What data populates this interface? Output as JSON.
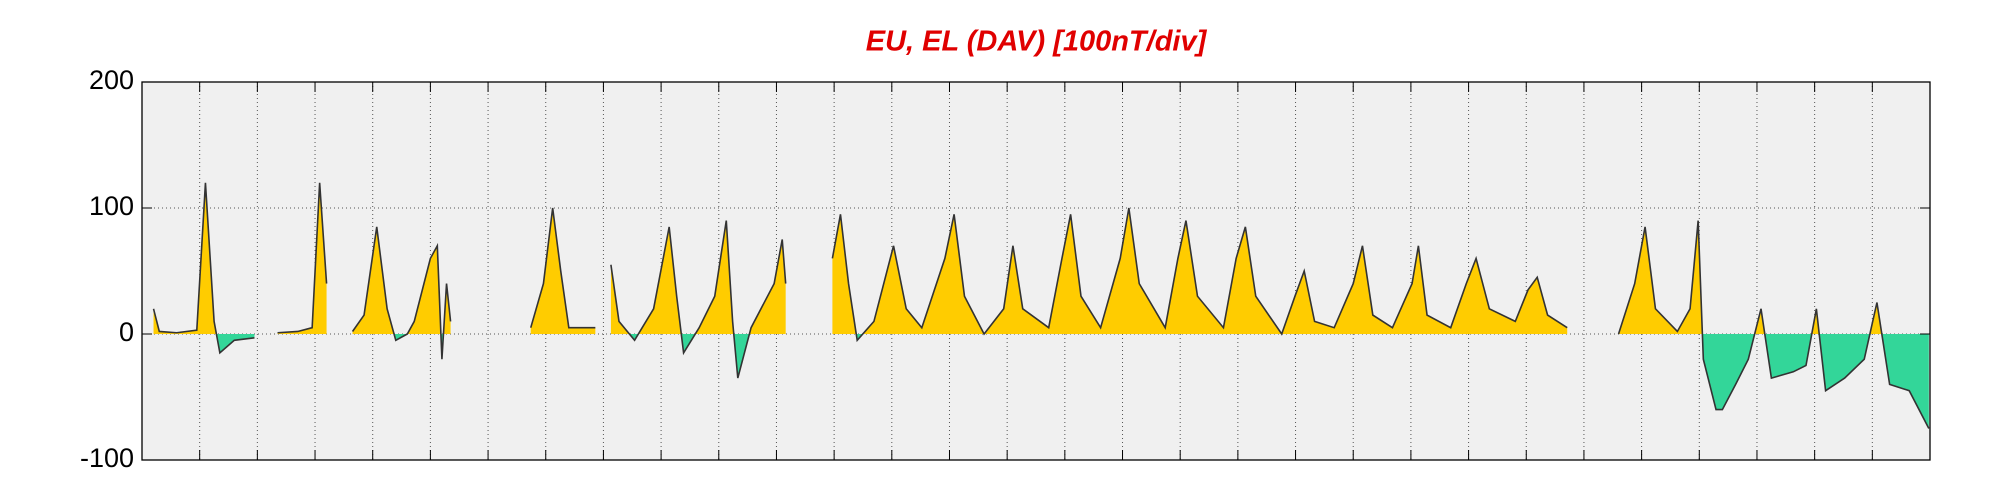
{
  "chart_data": {
    "type": "area",
    "title": "EU, EL (DAV)  [100nT/div]",
    "title_color": "#e00000",
    "pos_color": "#ffcc00",
    "neg_color": "#33d699",
    "line_color": "#333333",
    "background": "#f0f0f0",
    "grid": true,
    "xlim": [
      0,
      31
    ],
    "xticks": [
      1,
      2,
      3,
      4,
      5,
      6,
      7,
      8,
      9,
      10,
      11,
      12,
      13,
      14,
      15,
      16,
      17,
      18,
      19,
      20,
      21,
      22,
      23,
      24,
      25,
      26,
      27,
      28,
      29,
      30
    ],
    "ylim": [
      -100,
      200
    ],
    "yticks": [
      -100,
      0,
      100,
      200
    ],
    "x": [
      0.2,
      0.3,
      0.6,
      0.95,
      1.1,
      1.25,
      1.35,
      1.6,
      1.95,
      2.15,
      2.35,
      2.7,
      2.95,
      3.08,
      3.2,
      3.4,
      3.65,
      3.85,
      4.07,
      4.25,
      4.4,
      4.6,
      4.72,
      5.0,
      5.12,
      5.2,
      5.28,
      5.35,
      6.0,
      6.74,
      6.96,
      7.12,
      7.26,
      7.4,
      7.86,
      8.0,
      8.13,
      8.27,
      8.54,
      8.87,
      9.14,
      9.27,
      9.39,
      9.66,
      9.93,
      10.13,
      10.24,
      10.33,
      10.56,
      10.96,
      11.1,
      11.16,
      11.5,
      11.97,
      12.11,
      12.25,
      12.4,
      12.69,
      13.03,
      13.25,
      13.52,
      13.92,
      14.08,
      14.26,
      14.6,
      14.94,
      15.1,
      15.27,
      15.72,
      15.95,
      16.1,
      16.28,
      16.62,
      16.96,
      17.11,
      17.29,
      17.74,
      17.96,
      18.1,
      18.3,
      18.75,
      18.97,
      19.13,
      19.31,
      19.76,
      19.99,
      20.15,
      20.33,
      20.67,
      21.0,
      21.16,
      21.34,
      21.68,
      22.02,
      22.13,
      22.28,
      22.69,
      22.96,
      23.13,
      23.36,
      23.81,
      24.03,
      24.19,
      24.37,
      24.71,
      25.2,
      25.6,
      25.88,
      26.06,
      26.24,
      26.62,
      26.84,
      26.98,
      27.07,
      27.29,
      27.4,
      27.63,
      27.85,
      28.07,
      28.25,
      28.63,
      28.85,
      29.03,
      29.19,
      29.52,
      29.86,
      30.08,
      30.3,
      30.64,
      30.98
    ],
    "values": [
      20,
      2,
      1,
      3,
      120,
      10,
      -15,
      -5,
      -3,
      null,
      1,
      2,
      5,
      120,
      40,
      null,
      2,
      15,
      85,
      20,
      -5,
      0,
      10,
      60,
      70,
      -20,
      40,
      10,
      null,
      5,
      40,
      100,
      50,
      5,
      5,
      null,
      55,
      10,
      -5,
      20,
      85,
      30,
      -15,
      5,
      30,
      90,
      10,
      -35,
      5,
      40,
      75,
      40,
      null,
      60,
      95,
      40,
      -5,
      10,
      70,
      20,
      5,
      60,
      95,
      30,
      0,
      20,
      70,
      20,
      5,
      60,
      95,
      30,
      5,
      60,
      100,
      40,
      5,
      60,
      90,
      30,
      5,
      60,
      85,
      30,
      0,
      30,
      50,
      10,
      5,
      40,
      70,
      15,
      5,
      40,
      70,
      15,
      5,
      40,
      60,
      20,
      10,
      35,
      45,
      15,
      5,
      null,
      0,
      40,
      85,
      20,
      2,
      20,
      90,
      -20,
      -60,
      -60,
      -40,
      -20,
      20,
      -35,
      -30,
      -25,
      20,
      -45,
      -35,
      -20,
      25,
      -40,
      -45,
      -75
    ]
  }
}
